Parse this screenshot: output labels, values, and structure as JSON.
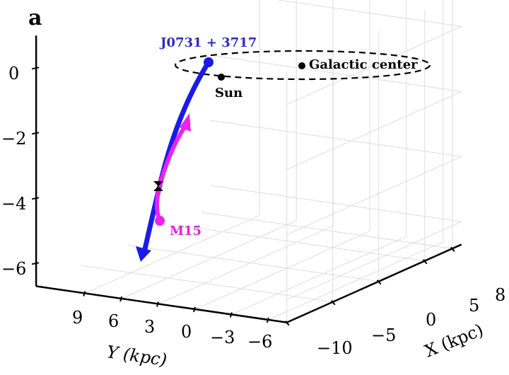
{
  "panel_label": "a",
  "chart_data": {
    "type": "line",
    "projection": "3d",
    "grid": true,
    "xlabel": "X (kpc)",
    "ylabel": "Y (kpc)",
    "x_ticks": [
      "−10",
      "−5",
      "0",
      "5",
      "8"
    ],
    "y_ticks": [
      "9",
      "6",
      "3",
      "0",
      "−3",
      "−6"
    ],
    "z_ticks": [
      "0",
      "−2",
      "−4",
      "−6"
    ],
    "series": [
      {
        "name": "J0731 + 3717",
        "color": "#1a1aeb",
        "description_marker": "start dot, arrow at end"
      },
      {
        "name": "M15",
        "color": "#ee22ee"
      }
    ],
    "points": [
      {
        "name": "Sun",
        "color": "#000000"
      },
      {
        "name": "Galactic center",
        "color": "#000000"
      }
    ],
    "annotations": [
      "dashed ellipse: solar orbit",
      "black hourglass marker at trajectory crossing"
    ]
  },
  "colors": {
    "blue_label": "#2c2cc4",
    "magenta_label": "#e020d8",
    "grid": "#dddddd"
  }
}
